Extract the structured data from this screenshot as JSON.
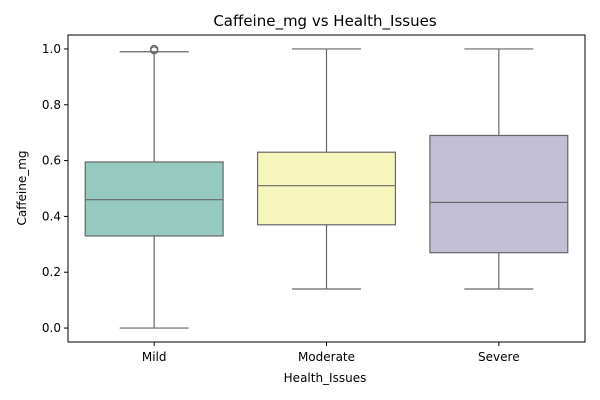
{
  "chart_data": {
    "type": "box",
    "title": "Caffeine_mg vs Health_Issues",
    "xlabel": "Health_Issues",
    "ylabel": "Caffeine_mg",
    "categories": [
      "Mild",
      "Moderate",
      "Severe"
    ],
    "ylim": [
      -0.05,
      1.05
    ],
    "yticks": [
      0.0,
      0.2,
      0.4,
      0.6,
      0.8,
      1.0
    ],
    "ytick_labels": [
      "0.0",
      "0.2",
      "0.4",
      "0.6",
      "0.8",
      "1.0"
    ],
    "grid": false,
    "boxes": [
      {
        "category": "Mild",
        "whisker_low": 0.0,
        "q1": 0.33,
        "median": 0.46,
        "q3": 0.595,
        "whisker_high": 0.99,
        "outliers": [
          0.995,
          1.0
        ],
        "color": "#96cac1"
      },
      {
        "category": "Moderate",
        "whisker_low": 0.14,
        "q1": 0.37,
        "median": 0.51,
        "q3": 0.63,
        "whisker_high": 1.0,
        "outliers": [],
        "color": "#f6f6bc"
      },
      {
        "category": "Severe",
        "whisker_low": 0.14,
        "q1": 0.27,
        "median": 0.45,
        "q3": 0.69,
        "whisker_high": 1.0,
        "outliers": [],
        "color": "#c1bed6"
      }
    ],
    "line_color": "#666666"
  }
}
